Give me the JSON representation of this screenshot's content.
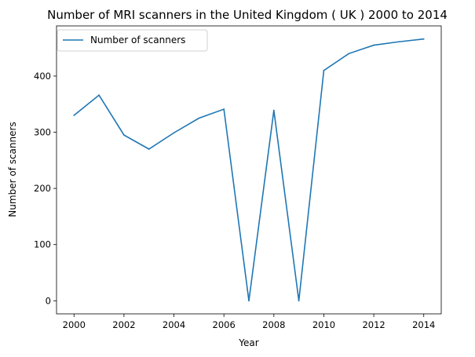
{
  "chart_data": {
    "type": "line",
    "title": "Number of MRI scanners in the United Kingdom ( UK ) 2000 to 2014",
    "xlabel": "Year",
    "ylabel": "Number of scanners",
    "x": [
      2000,
      2001,
      2002,
      2003,
      2004,
      2005,
      2006,
      2007,
      2008,
      2009,
      2010,
      2011,
      2012,
      2013,
      2014
    ],
    "series": [
      {
        "name": "Number of scanners",
        "color": "#1f77b4",
        "values": [
          330,
          366,
          295,
          270,
          299,
          325,
          341,
          0,
          339,
          0,
          410,
          440,
          455,
          461,
          466
        ]
      }
    ],
    "xlim": [
      1999.3,
      2014.7
    ],
    "ylim": [
      -23.3,
      489.3
    ],
    "xticks": [
      "2000",
      "2002",
      "2004",
      "2006",
      "2008",
      "2010",
      "2012",
      "2014"
    ],
    "yticks": [
      "0",
      "100",
      "200",
      "300",
      "400"
    ],
    "grid": false,
    "legend_position": "top-left"
  }
}
